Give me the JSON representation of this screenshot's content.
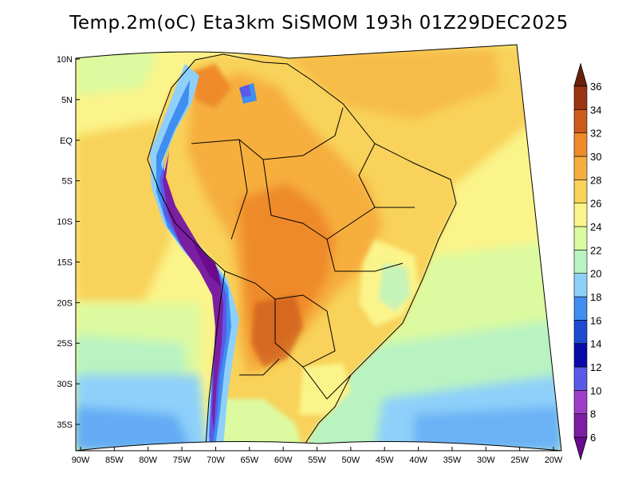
{
  "title": "Temp.2m(oC) Eta3km SiSMOM 193h 01Z29DEC2025",
  "map": {
    "variable": "2 m air temperature",
    "unit": "oC",
    "lon_range": [
      -90,
      -20
    ],
    "lat_range": [
      -37,
      11
    ],
    "lat_labels": [
      "10N",
      "5N",
      "EQ",
      "5S",
      "10S",
      "15S",
      "20S",
      "25S",
      "30S",
      "35S"
    ],
    "lon_labels": [
      "90W",
      "85W",
      "80W",
      "75W",
      "70W",
      "65W",
      "60W",
      "55W",
      "50W",
      "45W",
      "40W",
      "35W",
      "30W",
      "25W",
      "20W"
    ]
  },
  "colorbar": {
    "labels": [
      "6",
      "8",
      "10",
      "12",
      "14",
      "16",
      "18",
      "20",
      "22",
      "24",
      "26",
      "28",
      "30",
      "32",
      "34",
      "36"
    ],
    "levels": [
      {
        "min": 4,
        "max": 6,
        "color": "#6a0a8c"
      },
      {
        "min": 6,
        "max": 8,
        "color": "#7b1fa2"
      },
      {
        "min": 8,
        "max": 10,
        "color": "#9c40c8"
      },
      {
        "min": 10,
        "max": 12,
        "color": "#5a5ae8"
      },
      {
        "min": 12,
        "max": 14,
        "color": "#0a0aa8"
      },
      {
        "min": 14,
        "max": 16,
        "color": "#1e4ad2"
      },
      {
        "min": 16,
        "max": 18,
        "color": "#3f8ef0"
      },
      {
        "min": 18,
        "max": 20,
        "color": "#8ed0fa"
      },
      {
        "min": 20,
        "max": 22,
        "color": "#b9f3c2"
      },
      {
        "min": 22,
        "max": 24,
        "color": "#dcfaa0"
      },
      {
        "min": 24,
        "max": 26,
        "color": "#fbf48a"
      },
      {
        "min": 26,
        "max": 28,
        "color": "#f8d25a"
      },
      {
        "min": 28,
        "max": 30,
        "color": "#f6ae3e"
      },
      {
        "min": 30,
        "max": 32,
        "color": "#ee8a2a"
      },
      {
        "min": 32,
        "max": 34,
        "color": "#cc5a1c"
      },
      {
        "min": 34,
        "max": 36,
        "color": "#9a3412"
      },
      {
        "min": 36,
        "max": 38,
        "color": "#6b200c"
      }
    ]
  }
}
